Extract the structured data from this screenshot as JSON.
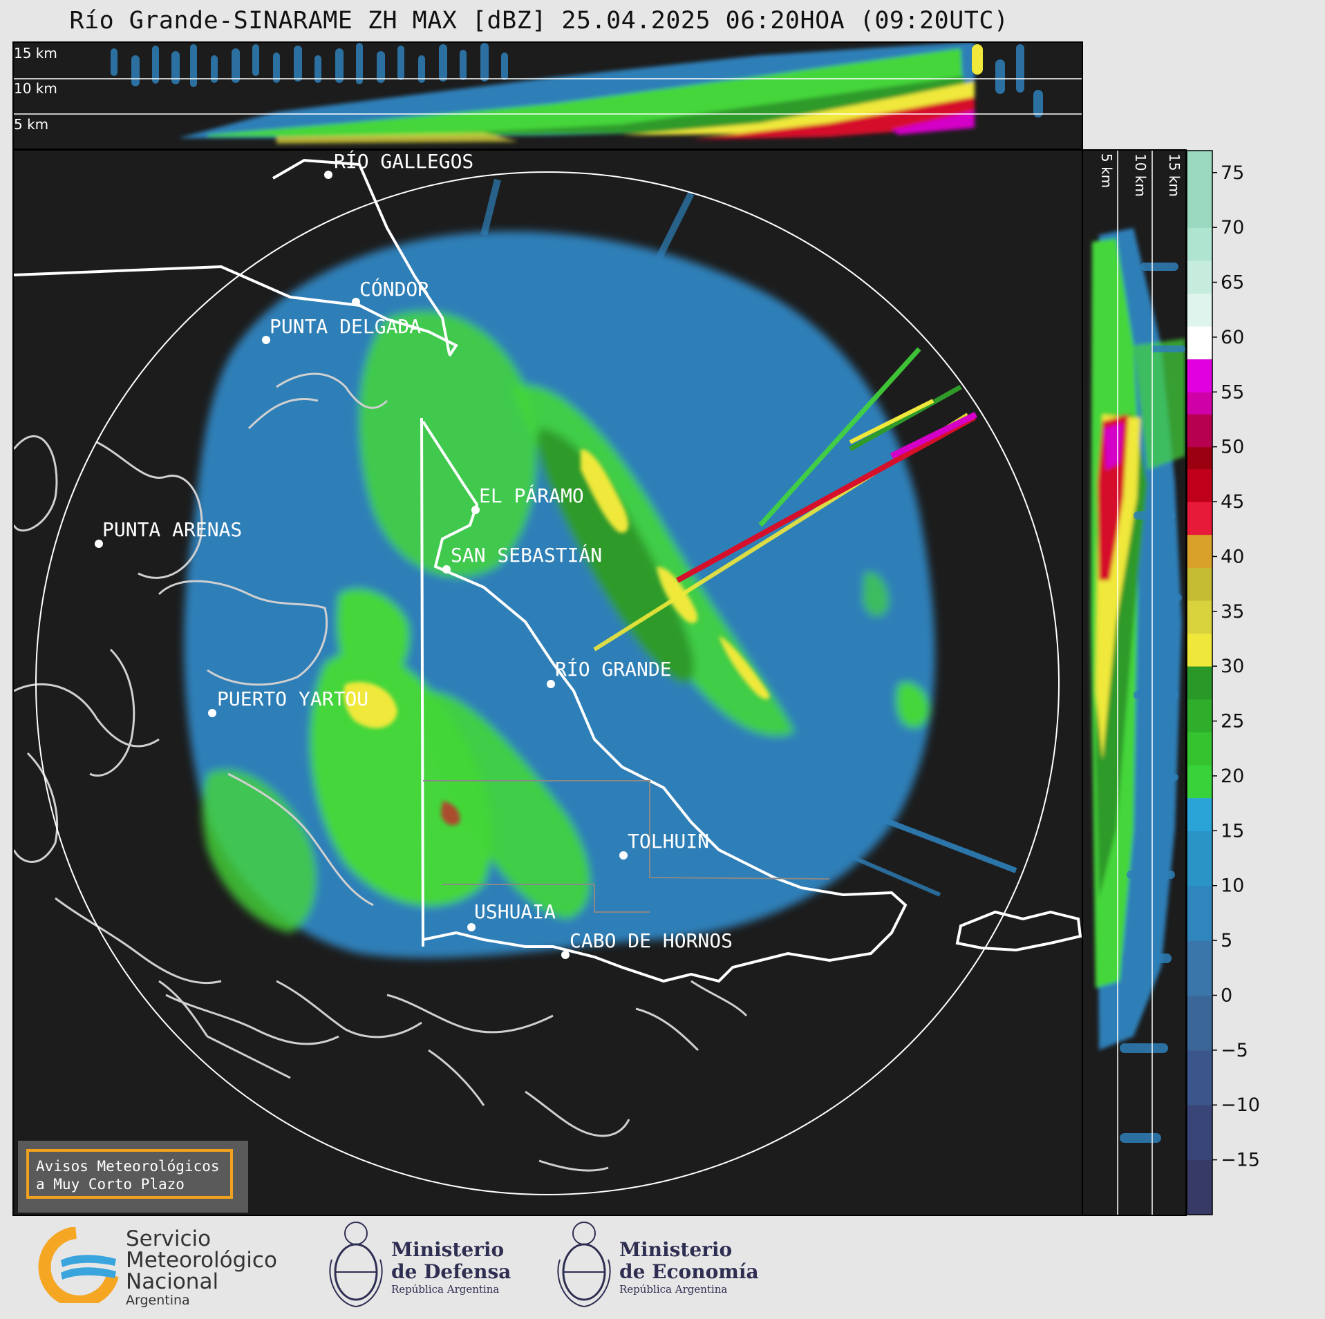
{
  "title": "Río Grande-SINARAME ZH MAX [dBZ] 25.04.2025 06:20HOA (09:20UTC)",
  "top_panel": {
    "altitudes": [
      "15 km",
      "10 km",
      "5 km"
    ]
  },
  "side_panel": {
    "altitudes": [
      "5 km",
      "10 km",
      "15 km"
    ]
  },
  "cities": [
    {
      "name": "RÍO GALLEGOS"
    },
    {
      "name": "CÓNDOR"
    },
    {
      "name": "PUNTA DELGADA"
    },
    {
      "name": "EL PÁRAMO"
    },
    {
      "name": "PUNTA ARENAS"
    },
    {
      "name": "SAN SEBASTIÁN"
    },
    {
      "name": "RÍO GRANDE"
    },
    {
      "name": "PUERTO YARTOU"
    },
    {
      "name": "TOLHUIN"
    },
    {
      "name": "USHUAIA"
    },
    {
      "name": "CABO DE HORNOS"
    }
  ],
  "colorbar": {
    "unit": "dBZ",
    "ticks": [
      "75",
      "70",
      "65",
      "60",
      "55",
      "50",
      "45",
      "40",
      "35",
      "30",
      "25",
      "20",
      "15",
      "10",
      "5",
      "0",
      "−5",
      "−10",
      "−15"
    ],
    "tick_values": [
      75,
      70,
      65,
      60,
      55,
      50,
      45,
      40,
      35,
      30,
      25,
      20,
      15,
      10,
      5,
      0,
      -5,
      -10,
      -15
    ],
    "range": [
      -20,
      77
    ]
  },
  "colors": {
    "background": "#e6e6e6",
    "panel": "#1c1c1c",
    "weak_echo": "#2e7fb8",
    "light_echo": "#44d63a",
    "moderate_echo": "#f0e83a",
    "heavy_echo": "#d6102a",
    "extreme_echo": "#d400c8",
    "warning_border": "#f0a21e"
  },
  "avisos": {
    "line1": "Avisos Meteorológicos",
    "line2": "a Muy Corto Plazo"
  },
  "logos": {
    "smn": {
      "line1": "Servicio",
      "line2": "Meteorológico",
      "line3": "Nacional",
      "line4": "Argentina"
    },
    "defensa": {
      "line1": "Ministerio",
      "line2": "de Defensa",
      "line3": "República Argentina"
    },
    "economia": {
      "line1": "Ministerio",
      "line2": "de Economía",
      "line3": "República Argentina"
    }
  }
}
